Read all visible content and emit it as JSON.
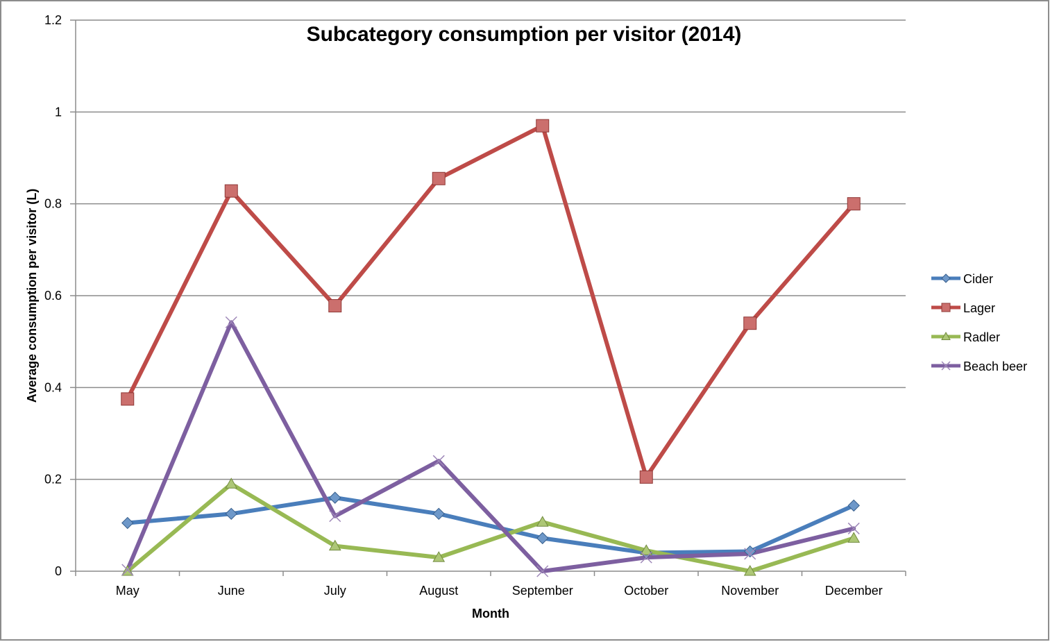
{
  "chart_data": {
    "type": "line",
    "title": "Subcategory consumption per visitor (2014)",
    "xlabel": "Month",
    "ylabel": "Average consumption per visitor (L)",
    "categories": [
      "May",
      "June",
      "July",
      "August",
      "September",
      "October",
      "November",
      "December"
    ],
    "ylim": [
      0,
      1.2
    ],
    "yticks": [
      0,
      0.2,
      0.4,
      0.6,
      0.8,
      1,
      1.2
    ],
    "ytick_labels": [
      "0",
      "0.2",
      "0.4",
      "0.6",
      "0.8",
      "1",
      "1.2"
    ],
    "grid": true,
    "legend_position": "right",
    "series": [
      {
        "name": "Cider",
        "color": "#4a7ebb",
        "marker": "diamond",
        "values": [
          0.105,
          0.125,
          0.16,
          0.125,
          0.072,
          0.04,
          0.043,
          0.143
        ]
      },
      {
        "name": "Lager",
        "color": "#be4b48",
        "marker": "square",
        "values": [
          0.375,
          0.828,
          0.578,
          0.855,
          0.97,
          0.205,
          0.54,
          0.8
        ]
      },
      {
        "name": "Radler",
        "color": "#98b954",
        "marker": "triangle",
        "values": [
          0.0,
          0.19,
          0.055,
          0.03,
          0.107,
          0.045,
          0.0,
          0.072
        ]
      },
      {
        "name": "Beach beer",
        "color": "#7d5fa0",
        "marker": "x",
        "values": [
          0.003,
          0.542,
          0.12,
          0.24,
          0.0,
          0.03,
          0.038,
          0.093
        ]
      }
    ]
  }
}
